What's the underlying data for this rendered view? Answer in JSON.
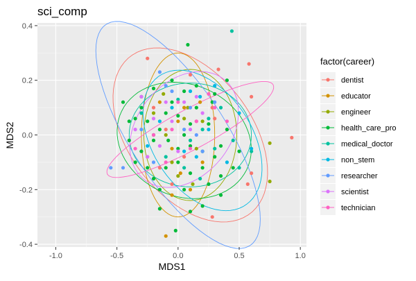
{
  "chart_data": {
    "type": "scatter",
    "title": "sci_comp",
    "xlabel": "MDS1",
    "ylabel": "MDS2",
    "xlim": [
      -1.15,
      1.05
    ],
    "ylim": [
      -0.41,
      0.41
    ],
    "x_ticks": [
      -1.0,
      -0.5,
      0.0,
      0.5,
      1.0
    ],
    "x_tick_labels": [
      "-1.0",
      "-0.5",
      "0.0",
      "0.5",
      "1.0"
    ],
    "y_ticks": [
      -0.4,
      -0.2,
      0.0,
      0.2,
      0.4
    ],
    "y_tick_labels": [
      "-0.4",
      "-0.2",
      "0.0",
      "0.2",
      "0.4"
    ],
    "grid": true,
    "legend": {
      "title": "factor(career)",
      "placement": "right"
    },
    "series": [
      {
        "name": "dentist",
        "color": "#F8766D",
        "points": [
          [
            -0.25,
            0.28
          ],
          [
            0.33,
            0.24
          ],
          [
            0.58,
            0.26
          ],
          [
            0.6,
            0.14
          ],
          [
            0.93,
            -0.01
          ],
          [
            0.28,
            0.1
          ],
          [
            0.15,
            0.05
          ],
          [
            -0.1,
            0.02
          ],
          [
            -0.15,
            -0.12
          ],
          [
            0.05,
            -0.08
          ],
          [
            0.1,
            0.22
          ],
          [
            -0.05,
            -0.18
          ],
          [
            0.3,
            0.06
          ],
          [
            0.28,
            -0.3
          ],
          [
            0.57,
            -0.18
          ],
          [
            0.6,
            -0.14
          ],
          [
            -0.2,
            0.1
          ]
        ],
        "ellipse": {
          "cx": 0.1,
          "cy": 0.0,
          "rx": 0.65,
          "ry": 0.28,
          "angle": -15
        }
      },
      {
        "name": "educator",
        "color": "#D39200",
        "points": [
          [
            -0.1,
            -0.37
          ],
          [
            -0.2,
            0.0
          ],
          [
            0.05,
            0.1
          ],
          [
            -0.05,
            -0.05
          ],
          [
            0.1,
            -0.2
          ],
          [
            0.0,
            0.05
          ],
          [
            -0.15,
            0.12
          ],
          [
            0.2,
            -0.1
          ],
          [
            -0.05,
            -0.22
          ],
          [
            0.18,
            0.12
          ],
          [
            -0.25,
            -0.08
          ],
          [
            0.02,
            -0.14
          ]
        ],
        "ellipse": {
          "cx": 0.0,
          "cy": 0.0,
          "rx": 0.3,
          "ry": 0.3,
          "angle": 80
        }
      },
      {
        "name": "engineer",
        "color": "#93AA00",
        "points": [
          [
            0.75,
            -0.03
          ],
          [
            0.75,
            -0.17
          ],
          [
            0.08,
            0.1
          ],
          [
            -0.1,
            0.0
          ],
          [
            0.15,
            -0.05
          ],
          [
            0.05,
            0.06
          ],
          [
            -0.05,
            -0.1
          ],
          [
            0.2,
            0.05
          ],
          [
            0.0,
            -0.15
          ],
          [
            -0.2,
            0.08
          ],
          [
            0.12,
            -0.18
          ],
          [
            -0.12,
            0.15
          ]
        ],
        "ellipse": {
          "cx": 0.1,
          "cy": 0.0,
          "rx": 0.38,
          "ry": 0.24,
          "angle": 0
        }
      },
      {
        "name": "health_care_pro",
        "color": "#00BA38",
        "points": [
          [
            0.08,
            0.33
          ],
          [
            -0.02,
            -0.35
          ],
          [
            0.1,
            -0.28
          ],
          [
            0.2,
            -0.26
          ],
          [
            -0.15,
            -0.27
          ],
          [
            0.35,
            -0.15
          ],
          [
            -0.45,
            0.12
          ],
          [
            -0.4,
            0.05
          ],
          [
            -0.35,
            0.06
          ],
          [
            -0.3,
            0.1
          ],
          [
            -0.25,
            0.05
          ],
          [
            -0.2,
            -0.02
          ],
          [
            -0.15,
            0.02
          ],
          [
            -0.1,
            0.08
          ],
          [
            -0.05,
            0.12
          ],
          [
            0.0,
            0.07
          ],
          [
            0.05,
            0.0
          ],
          [
            0.1,
            -0.04
          ],
          [
            0.15,
            0.1
          ],
          [
            0.2,
            -0.06
          ],
          [
            0.25,
            0.04
          ],
          [
            0.3,
            -0.08
          ],
          [
            0.35,
            -0.04
          ],
          [
            0.4,
            0.02
          ],
          [
            0.45,
            -0.12
          ],
          [
            -0.3,
            -0.06
          ],
          [
            -0.25,
            -0.12
          ],
          [
            -0.2,
            -0.16
          ],
          [
            -0.1,
            -0.12
          ],
          [
            0.0,
            -0.1
          ],
          [
            0.05,
            -0.2
          ],
          [
            0.1,
            -0.14
          ],
          [
            0.2,
            -0.12
          ],
          [
            0.3,
            0.15
          ],
          [
            0.4,
            0.2
          ],
          [
            -0.35,
            -0.1
          ],
          [
            -0.3,
            0.14
          ],
          [
            0.05,
            0.16
          ],
          [
            -0.05,
            0.2
          ],
          [
            0.15,
            0.18
          ],
          [
            0.25,
            -0.18
          ],
          [
            0.35,
            -0.22
          ],
          [
            0.5,
            -0.06
          ],
          [
            -0.4,
            -0.02
          ],
          [
            -0.2,
            0.17
          ],
          [
            0.1,
            0.04
          ],
          [
            -0.15,
            -0.2
          ],
          [
            0.28,
            0.12
          ],
          [
            0.0,
            -0.05
          ],
          [
            -0.08,
            -0.02
          ]
        ],
        "ellipse": {
          "cx": 0.05,
          "cy": -0.02,
          "rx": 0.55,
          "ry": 0.21,
          "angle": -4
        }
      },
      {
        "name": "medical_doctor",
        "color": "#00C19F",
        "points": [
          [
            0.44,
            0.38
          ],
          [
            0.6,
            -0.06
          ],
          [
            -0.3,
            0.08
          ],
          [
            0.0,
            0.13
          ],
          [
            0.1,
            -0.02
          ],
          [
            0.25,
            0.06
          ],
          [
            -0.1,
            -0.08
          ],
          [
            0.35,
            0.1
          ],
          [
            0.18,
            -0.16
          ],
          [
            0.45,
            -0.02
          ],
          [
            0.2,
            0.02
          ],
          [
            0.5,
            -0.12
          ],
          [
            -0.2,
            0.0
          ],
          [
            0.05,
            -0.12
          ],
          [
            0.3,
            -0.05
          ]
        ],
        "ellipse": {
          "cx": 0.1,
          "cy": 0.0,
          "rx": 0.5,
          "ry": 0.19,
          "angle": 0
        }
      },
      {
        "name": "non_stem",
        "color": "#00B9E3",
        "points": [
          [
            -0.05,
            0.1
          ],
          [
            0.1,
            0.16
          ],
          [
            0.25,
            0.02
          ],
          [
            0.15,
            -0.08
          ],
          [
            -0.15,
            0.05
          ],
          [
            0.3,
            0.18
          ],
          [
            0.05,
            -0.06
          ],
          [
            -0.25,
            -0.04
          ],
          [
            0.18,
            0.14
          ],
          [
            0.4,
            -0.1
          ],
          [
            0.6,
            -0.05
          ],
          [
            0.5,
            0.08
          ]
        ],
        "ellipse": {
          "cx": 0.2,
          "cy": -0.02,
          "rx": 0.5,
          "ry": 0.23,
          "angle": -15
        }
      },
      {
        "name": "researcher",
        "color": "#619CFF",
        "points": [
          [
            -0.15,
            0.23
          ],
          [
            -0.55,
            -0.12
          ],
          [
            -0.45,
            -0.12
          ],
          [
            -0.3,
            0.02
          ],
          [
            -0.05,
            0.16
          ],
          [
            0.1,
            0.1
          ],
          [
            0.2,
            -0.06
          ],
          [
            -0.2,
            -0.1
          ],
          [
            0.05,
            0.02
          ],
          [
            0.3,
            0.12
          ],
          [
            -0.1,
            0.18
          ],
          [
            0.15,
            0.0
          ]
        ],
        "ellipse": {
          "cx": 0.0,
          "cy": 0.0,
          "rx": 0.75,
          "ry": 0.25,
          "angle": -28
        }
      },
      {
        "name": "scientist",
        "color": "#DB72FB",
        "points": [
          [
            -0.3,
            0.14
          ],
          [
            -0.2,
            0.06
          ],
          [
            -0.1,
            0.12
          ],
          [
            0.0,
            -0.06
          ],
          [
            0.1,
            0.02
          ],
          [
            0.2,
            0.08
          ],
          [
            -0.05,
            0.05
          ],
          [
            -0.15,
            -0.04
          ],
          [
            0.05,
            0.12
          ],
          [
            -0.35,
            0.02
          ],
          [
            0.15,
            0.14
          ],
          [
            -0.25,
            -0.08
          ]
        ],
        "ellipse": {
          "cx": 0.05,
          "cy": 0.02,
          "rx": 0.45,
          "ry": 0.2,
          "angle": 10
        }
      },
      {
        "name": "technician",
        "color": "#FF61C3",
        "points": [
          [
            -0.2,
            0.0
          ],
          [
            0.0,
            0.12
          ],
          [
            0.15,
            0.05
          ],
          [
            0.3,
            0.1
          ],
          [
            -0.35,
            -0.05
          ],
          [
            0.25,
            0.15
          ],
          [
            -0.1,
            -0.1
          ],
          [
            0.1,
            -0.05
          ],
          [
            0.4,
            0.05
          ],
          [
            -0.05,
            0.02
          ]
        ],
        "ellipse": {
          "cx": 0.1,
          "cy": 0.02,
          "rx": 0.7,
          "ry": 0.08,
          "angle": 13
        }
      }
    ]
  }
}
